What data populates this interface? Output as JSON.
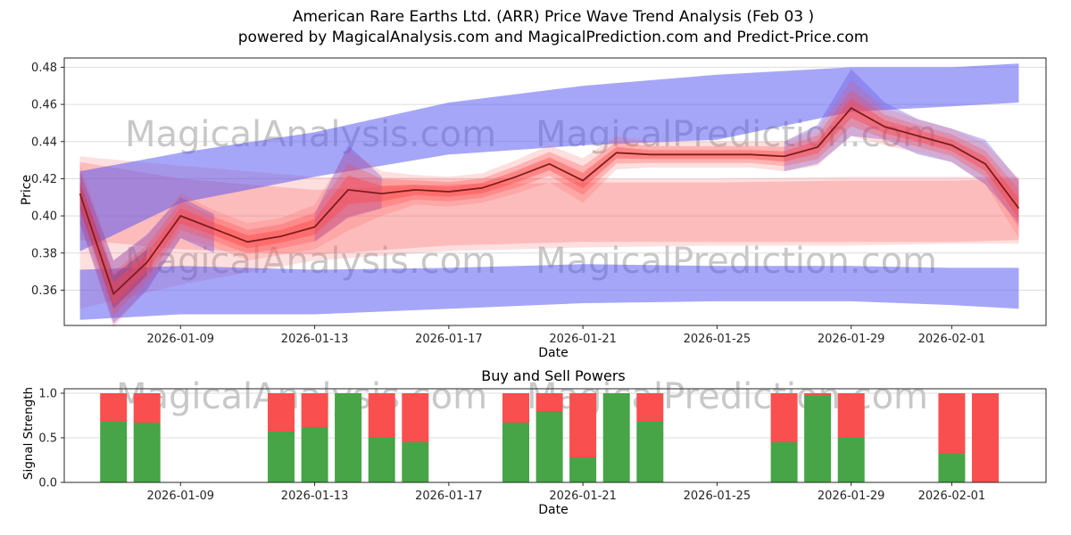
{
  "title": {
    "line1": "American Rare Earths Ltd. (ARR) Price Wave Trend Analysis (Feb 03 )",
    "line2": "powered by MagicalAnalysis.com and MagicalPrediction.com and Predict-Price.com"
  },
  "watermarks": {
    "left": "MagicalAnalysis.com",
    "right": "MagicalPrediction.com"
  },
  "chart_data": [
    {
      "type": "area",
      "title": "",
      "xlabel": "Date",
      "ylabel": "Price",
      "ylim": [
        0.341,
        0.485
      ],
      "yticks": [
        "0.36",
        "0.38",
        "0.40",
        "0.42",
        "0.44",
        "0.46",
        "0.48"
      ],
      "xticks": [
        "2026-01-09",
        "2026-01-13",
        "2026-01-17",
        "2026-01-21",
        "2026-01-25",
        "2026-01-29",
        "2026-02-01"
      ],
      "grid": true,
      "bands": [
        {
          "name": "trend-band-pink-outer",
          "color": "rgba(252,110,110,0.22)",
          "dates": [
            "2026-01-06",
            "2026-01-09",
            "2026-01-13",
            "2026-01-17",
            "2026-01-21",
            "2026-01-25",
            "2026-01-29",
            "2026-02-01",
            "2026-02-03"
          ],
          "top": [
            0.432,
            0.427,
            0.421,
            0.42,
            0.42,
            0.42,
            0.421,
            0.421,
            0.421
          ],
          "bottom": [
            0.35,
            0.363,
            0.376,
            0.381,
            0.383,
            0.384,
            0.384,
            0.385,
            0.385
          ]
        },
        {
          "name": "trend-band-pink-inner",
          "color": "rgba(252,110,110,0.30)",
          "dates": [
            "2026-01-06",
            "2026-01-09",
            "2026-01-13",
            "2026-01-17",
            "2026-01-21",
            "2026-01-25",
            "2026-01-29",
            "2026-02-01",
            "2026-02-03"
          ],
          "top": [
            0.429,
            0.42,
            0.414,
            0.417,
            0.418,
            0.418,
            0.419,
            0.419,
            0.42
          ],
          "bottom": [
            0.387,
            0.382,
            0.379,
            0.384,
            0.386,
            0.386,
            0.386,
            0.386,
            0.387
          ]
        },
        {
          "name": "forecast-band-blue-upper",
          "color": "rgba(78,78,242,0.50)",
          "dates": [
            "2026-01-06",
            "2026-01-09",
            "2026-01-13",
            "2026-01-17",
            "2026-01-21",
            "2026-01-25",
            "2026-01-29",
            "2026-02-01",
            "2026-02-03"
          ],
          "top": [
            0.424,
            0.434,
            0.445,
            0.461,
            0.47,
            0.476,
            0.48,
            0.48,
            0.482
          ],
          "bottom": [
            0.381,
            0.407,
            0.421,
            0.433,
            0.438,
            0.441,
            0.456,
            0.459,
            0.461
          ]
        },
        {
          "name": "forecast-band-blue-lower",
          "color": "rgba(78,78,242,0.50)",
          "dates": [
            "2026-01-06",
            "2026-01-09",
            "2026-01-13",
            "2026-01-17",
            "2026-01-21",
            "2026-01-25",
            "2026-01-29",
            "2026-02-01",
            "2026-02-03"
          ],
          "top": [
            0.371,
            0.373,
            0.371,
            0.372,
            0.374,
            0.373,
            0.373,
            0.372,
            0.372
          ],
          "bottom": [
            0.344,
            0.347,
            0.347,
            0.35,
            0.353,
            0.354,
            0.354,
            0.352,
            0.35
          ]
        },
        {
          "name": "wave-band-purple-start",
          "color": "rgba(100,80,225,0.38)",
          "dates": [
            "2026-01-06",
            "2026-01-07",
            "2026-01-08",
            "2026-01-09",
            "2026-01-10"
          ],
          "top": [
            0.424,
            0.376,
            0.39,
            0.41,
            0.401
          ],
          "bottom": [
            0.396,
            0.342,
            0.36,
            0.388,
            0.38
          ]
        },
        {
          "name": "wave-band-purple-start-core",
          "color": "rgba(58,48,165,0.45)",
          "dates": [
            "2026-01-06",
            "2026-01-07",
            "2026-01-08"
          ],
          "top": [
            0.418,
            0.368,
            0.382
          ],
          "bottom": [
            0.404,
            0.35,
            0.368
          ]
        },
        {
          "name": "wave-band-purple-spike",
          "color": "rgba(100,80,225,0.35)",
          "dates": [
            "2026-01-13",
            "2026-01-14",
            "2026-01-15"
          ],
          "top": [
            0.401,
            0.438,
            0.421
          ],
          "bottom": [
            0.386,
            0.399,
            0.404
          ]
        },
        {
          "name": "wave-band-purple-peak",
          "color": "rgba(100,80,225,0.35)",
          "dates": [
            "2026-01-27",
            "2026-01-28",
            "2026-01-29",
            "2026-01-30",
            "2026-01-31",
            "2026-02-01",
            "2026-02-02",
            "2026-02-03"
          ],
          "top": [
            0.44,
            0.449,
            0.479,
            0.461,
            0.452,
            0.447,
            0.441,
            0.419
          ],
          "bottom": [
            0.424,
            0.428,
            0.443,
            0.441,
            0.433,
            0.429,
            0.417,
            0.396
          ]
        }
      ],
      "price_line": {
        "name": "price-wave-center",
        "color": "#7e1c1c",
        "fuzz_color": "255,70,70",
        "dates": [
          "2026-01-06",
          "2026-01-07",
          "2026-01-08",
          "2026-01-09",
          "2026-01-10",
          "2026-01-11",
          "2026-01-12",
          "2026-01-13",
          "2026-01-14",
          "2026-01-15",
          "2026-01-16",
          "2026-01-17",
          "2026-01-18",
          "2026-01-19",
          "2026-01-20",
          "2026-01-21",
          "2026-01-22",
          "2026-01-23",
          "2026-01-24",
          "2026-01-25",
          "2026-01-26",
          "2026-01-27",
          "2026-01-28",
          "2026-01-29",
          "2026-01-30",
          "2026-01-31",
          "2026-02-01",
          "2026-02-02",
          "2026-02-03"
        ],
        "values": [
          0.412,
          0.358,
          0.375,
          0.4,
          0.393,
          0.386,
          0.389,
          0.394,
          0.414,
          0.412,
          0.414,
          0.413,
          0.415,
          0.421,
          0.428,
          0.419,
          0.434,
          0.433,
          0.433,
          0.433,
          0.433,
          0.432,
          0.437,
          0.458,
          0.448,
          0.443,
          0.438,
          0.428,
          0.404
        ],
        "halfwidth": [
          0.016,
          0.018,
          0.014,
          0.012,
          0.01,
          0.01,
          0.01,
          0.012,
          0.022,
          0.012,
          0.008,
          0.008,
          0.008,
          0.009,
          0.01,
          0.012,
          0.009,
          0.007,
          0.007,
          0.007,
          0.007,
          0.008,
          0.01,
          0.015,
          0.01,
          0.009,
          0.009,
          0.011,
          0.016
        ]
      }
    },
    {
      "type": "bar",
      "title": "Buy and Sell Powers",
      "xlabel": "Date",
      "ylabel": "Signal Strength",
      "ylim": [
        0,
        1.05
      ],
      "yticks": [
        "0.0",
        "0.5",
        "1.0"
      ],
      "xticks": [
        "2026-01-09",
        "2026-01-13",
        "2026-01-17",
        "2026-01-21",
        "2026-01-25",
        "2026-01-29",
        "2026-02-01"
      ],
      "colors": {
        "buy": "#47a447",
        "sell": "#f94f4f"
      },
      "bars": [
        {
          "date": "2026-01-07",
          "buy": 0.68,
          "sell": 0.32
        },
        {
          "date": "2026-01-08",
          "buy": 0.67,
          "sell": 0.33
        },
        {
          "date": "2026-01-12",
          "buy": 0.57,
          "sell": 0.43
        },
        {
          "date": "2026-01-13",
          "buy": 0.62,
          "sell": 0.38
        },
        {
          "date": "2026-01-14",
          "buy": 1.0,
          "sell": 0.0
        },
        {
          "date": "2026-01-15",
          "buy": 0.5,
          "sell": 0.5
        },
        {
          "date": "2026-01-16",
          "buy": 0.45,
          "sell": 0.55
        },
        {
          "date": "2026-01-19",
          "buy": 0.67,
          "sell": 0.33
        },
        {
          "date": "2026-01-20",
          "buy": 0.8,
          "sell": 0.2
        },
        {
          "date": "2026-01-21",
          "buy": 0.28,
          "sell": 0.72
        },
        {
          "date": "2026-01-22",
          "buy": 1.0,
          "sell": 0.0
        },
        {
          "date": "2026-01-23",
          "buy": 0.68,
          "sell": 0.32
        },
        {
          "date": "2026-01-27",
          "buy": 0.45,
          "sell": 0.55
        },
        {
          "date": "2026-01-28",
          "buy": 0.97,
          "sell": 0.03
        },
        {
          "date": "2026-01-29",
          "buy": 0.5,
          "sell": 0.5
        },
        {
          "date": "2026-02-01",
          "buy": 0.33,
          "sell": 0.67
        },
        {
          "date": "2026-02-02",
          "buy": 0.0,
          "sell": 1.0
        }
      ]
    }
  ]
}
